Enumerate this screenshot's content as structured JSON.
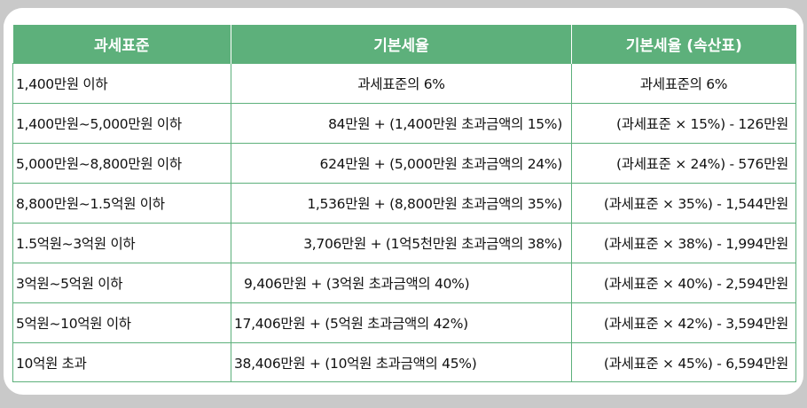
{
  "table": {
    "headers": [
      "과세표준",
      "기본세율",
      "기본세율 (속산표)"
    ],
    "rows": [
      [
        "1,400만원 이하",
        "과세표준의 6%",
        "과세표준의 6%"
      ],
      [
        "1,400만원~5,000만원 이하",
        "84만원 + (1,400만원 초과금액의 15%)",
        "(과세표준 × 15%) - 126만원"
      ],
      [
        "5,000만원~8,800만원 이하",
        "624만원 + (5,000만원 초과금액의 24%)",
        "(과세표준 × 24%) - 576만원"
      ],
      [
        "8,800만원~1.5억원 이하",
        "1,536만원 + (8,800만원 초과금액의 35%)",
        "(과세표준 × 35%) - 1,544만원"
      ],
      [
        "1.5억원~3억원 이하",
        "3,706만원 + (1억5천만원 초과금액의 38%)",
        "(과세표준 × 38%) - 1,994만원"
      ],
      [
        "3억원~5억원 이하",
        "9,406만원 + (3억원 초과금액의 40%)",
        "(과세표준 × 40%) - 2,594만원"
      ],
      [
        "5억원~10억원 이하",
        "17,406만원 + (5억원 초과금액의 42%)",
        "(과세표준 × 42%) - 3,594만원"
      ],
      [
        "10억원 초과",
        "38,406만원 + (10억원 초과금액의 45%)",
        "(과세표준 × 45%) - 6,594만원"
      ]
    ]
  },
  "colors": {
    "header_bg": "#5db07b",
    "border": "#5db07b",
    "page_bg": "#c9c9c9"
  }
}
